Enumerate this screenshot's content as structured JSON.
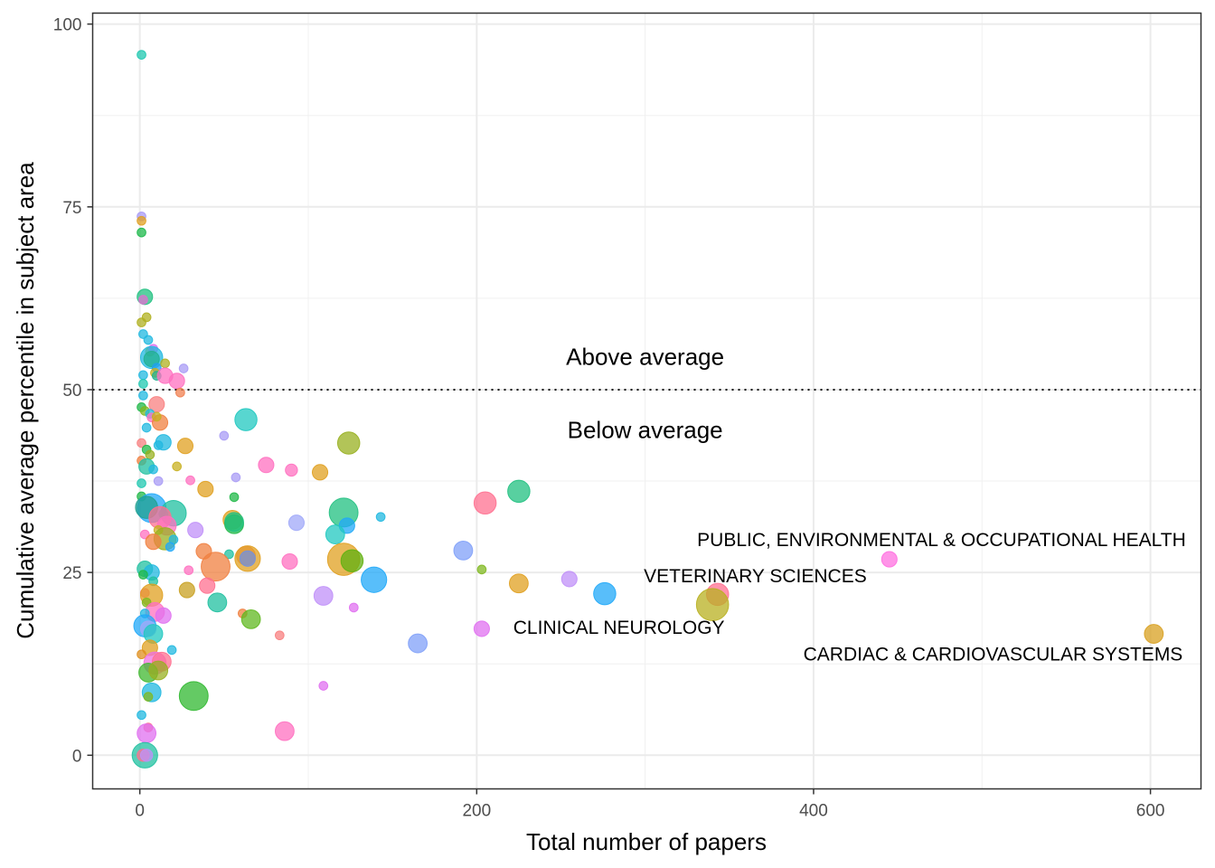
{
  "chart_data": {
    "type": "scatter",
    "title": "",
    "xlabel": "Total number of papers",
    "ylabel": "Cumulative average percentile in subject area",
    "xlim": [
      -28,
      630
    ],
    "ylim": [
      -4.6,
      101.5
    ],
    "xticks": [
      0,
      200,
      400,
      600
    ],
    "xtick_labels": [
      "0",
      "200",
      "400",
      "600"
    ],
    "yticks": [
      0,
      25,
      50,
      75,
      100
    ],
    "ytick_labels": [
      "0",
      "25",
      "50",
      "75",
      "100"
    ],
    "grid": true,
    "legend": "none",
    "reference_line": {
      "y": 50,
      "style": "dotted"
    },
    "annotations": [
      {
        "text": "Above average",
        "x": 300,
        "y": 54.5
      },
      {
        "text": "Below average",
        "x": 300,
        "y": 44.5
      }
    ],
    "point_labels": [
      {
        "text": "PUBLIC, ENVIRONMENTAL & OCCUPATIONAL HEALTH",
        "x": 445,
        "y": 29
      },
      {
        "text": "VETERINARY SCIENCES",
        "x": 343,
        "y": 24.5
      },
      {
        "text": "CLINICAL NEUROLOGY",
        "x": 204,
        "y": 17.5
      },
      {
        "text": "CARDIAC & CARDIOVASCULAR SYSTEMS",
        "x": 602,
        "y": 13.8
      }
    ],
    "points": [
      {
        "x": 1,
        "y": 95.8,
        "size": 1,
        "color": "#1fc8b0"
      },
      {
        "x": 1,
        "y": 73.7,
        "size": 1,
        "color": "#a89bf5"
      },
      {
        "x": 1,
        "y": 73.1,
        "size": 1,
        "color": "#e0a020"
      },
      {
        "x": 1,
        "y": 71.5,
        "size": 1,
        "color": "#1cb84a"
      },
      {
        "x": 3,
        "y": 62.7,
        "size": 3,
        "color": "#20c080"
      },
      {
        "x": 2,
        "y": 62.3,
        "size": 1,
        "color": "#e070d0"
      },
      {
        "x": 4,
        "y": 59.9,
        "size": 1,
        "color": "#b0b020"
      },
      {
        "x": 1,
        "y": 59.2,
        "size": 1,
        "color": "#b0b020"
      },
      {
        "x": 2,
        "y": 57.6,
        "size": 1,
        "color": "#20b8e0"
      },
      {
        "x": 5,
        "y": 56.8,
        "size": 1,
        "color": "#20b8e0"
      },
      {
        "x": 6,
        "y": 55.2,
        "size": 1,
        "color": "#c8b020"
      },
      {
        "x": 8,
        "y": 55.6,
        "size": 1,
        "color": "#e070f0"
      },
      {
        "x": 7,
        "y": 54.4,
        "size": 5,
        "color": "#20b8e0"
      },
      {
        "x": 7,
        "y": 54.2,
        "size": 3,
        "color": "#20b090"
      },
      {
        "x": 10,
        "y": 53,
        "size": 1,
        "color": "#20a0f0"
      },
      {
        "x": 15,
        "y": 53.6,
        "size": 1,
        "color": "#b0b020"
      },
      {
        "x": 26,
        "y": 52.9,
        "size": 1,
        "color": "#a89bf5"
      },
      {
        "x": 9,
        "y": 52.3,
        "size": 1,
        "color": "#c8b020"
      },
      {
        "x": 2,
        "y": 52,
        "size": 1,
        "color": "#20b8e0"
      },
      {
        "x": 10,
        "y": 51.9,
        "size": 1,
        "color": "#20b090"
      },
      {
        "x": 15,
        "y": 51.9,
        "size": 3,
        "color": "#ff70c0"
      },
      {
        "x": 22,
        "y": 51.2,
        "size": 3,
        "color": "#ff70c0"
      },
      {
        "x": 24,
        "y": 49.6,
        "size": 1,
        "color": "#f08050"
      },
      {
        "x": 2,
        "y": 50.8,
        "size": 1,
        "color": "#20c8b0"
      },
      {
        "x": 2,
        "y": 49.2,
        "size": 1,
        "color": "#20b8e0"
      },
      {
        "x": 10,
        "y": 48,
        "size": 3,
        "color": "#f88080"
      },
      {
        "x": 1,
        "y": 47.6,
        "size": 1,
        "color": "#20b848"
      },
      {
        "x": 3,
        "y": 47.1,
        "size": 1,
        "color": "#80b820"
      },
      {
        "x": 6,
        "y": 46.7,
        "size": 1,
        "color": "#20b8e0"
      },
      {
        "x": 7,
        "y": 46.2,
        "size": 1,
        "color": "#ff70c0"
      },
      {
        "x": 12,
        "y": 45.5,
        "size": 3,
        "color": "#f08040"
      },
      {
        "x": 10,
        "y": 46.3,
        "size": 1,
        "color": "#c8b020"
      },
      {
        "x": 4,
        "y": 44.8,
        "size": 1,
        "color": "#20b8e0"
      },
      {
        "x": 63,
        "y": 45.9,
        "size": 5,
        "color": "#20c8c0"
      },
      {
        "x": 50,
        "y": 43.7,
        "size": 1,
        "color": "#a89bf5"
      },
      {
        "x": 124,
        "y": 42.7,
        "size": 5,
        "color": "#98b020"
      },
      {
        "x": 1,
        "y": 42.7,
        "size": 1,
        "color": "#f88080"
      },
      {
        "x": 14,
        "y": 42.8,
        "size": 3,
        "color": "#20b8e0"
      },
      {
        "x": 11,
        "y": 42.4,
        "size": 1,
        "color": "#20b8e0"
      },
      {
        "x": 27,
        "y": 42.3,
        "size": 3,
        "color": "#e0a020"
      },
      {
        "x": 4,
        "y": 41.8,
        "size": 1,
        "color": "#20b848"
      },
      {
        "x": 6,
        "y": 41.1,
        "size": 1,
        "color": "#98b020"
      },
      {
        "x": 1,
        "y": 40.3,
        "size": 1,
        "color": "#f08040"
      },
      {
        "x": 4,
        "y": 39.5,
        "size": 3,
        "color": "#20c0a0"
      },
      {
        "x": 75,
        "y": 39.7,
        "size": 3,
        "color": "#ff70c0"
      },
      {
        "x": 90,
        "y": 39,
        "size": 2,
        "color": "#ff70c0"
      },
      {
        "x": 107,
        "y": 38.7,
        "size": 3,
        "color": "#e0a020"
      },
      {
        "x": 22,
        "y": 39.5,
        "size": 1,
        "color": "#c8b020"
      },
      {
        "x": 8,
        "y": 39.1,
        "size": 1,
        "color": "#20b8e0"
      },
      {
        "x": 57,
        "y": 38,
        "size": 1,
        "color": "#a89bf5"
      },
      {
        "x": 11,
        "y": 37.5,
        "size": 1,
        "color": "#a89bf5"
      },
      {
        "x": 30,
        "y": 37.6,
        "size": 1,
        "color": "#ff70c0"
      },
      {
        "x": 39,
        "y": 36.4,
        "size": 3,
        "color": "#e0a020"
      },
      {
        "x": 1,
        "y": 37.2,
        "size": 1,
        "color": "#20c8b0"
      },
      {
        "x": 225,
        "y": 36.1,
        "size": 5,
        "color": "#20c080"
      },
      {
        "x": 1,
        "y": 35.4,
        "size": 1,
        "color": "#20b848"
      },
      {
        "x": 56,
        "y": 35.3,
        "size": 1,
        "color": "#20b848"
      },
      {
        "x": 205,
        "y": 34.5,
        "size": 5,
        "color": "#ff7090"
      },
      {
        "x": 7,
        "y": 33.8,
        "size": 7,
        "color": "#20a8f8"
      },
      {
        "x": 4,
        "y": 33.9,
        "size": 5,
        "color": "#20a090"
      },
      {
        "x": 20,
        "y": 33.1,
        "size": 6,
        "color": "#20c0a0"
      },
      {
        "x": 121,
        "y": 33.2,
        "size": 7,
        "color": "#20c080"
      },
      {
        "x": 14,
        "y": 33,
        "size": 1,
        "color": "#20b8e0"
      },
      {
        "x": 12,
        "y": 32.5,
        "size": 5,
        "color": "#ff7090"
      },
      {
        "x": 55,
        "y": 32.2,
        "size": 4,
        "color": "#e0a020"
      },
      {
        "x": 56,
        "y": 31.6,
        "size": 4,
        "color": "#20b848"
      },
      {
        "x": 56,
        "y": 31.9,
        "size": 4,
        "color": "#20c080"
      },
      {
        "x": 143,
        "y": 32.6,
        "size": 1,
        "color": "#20b8e0"
      },
      {
        "x": 93,
        "y": 31.8,
        "size": 3,
        "color": "#a0a8f8"
      },
      {
        "x": 123,
        "y": 31.4,
        "size": 3,
        "color": "#20a8f8"
      },
      {
        "x": 16,
        "y": 31.4,
        "size": 4,
        "color": "#ff70c0"
      },
      {
        "x": 33,
        "y": 30.8,
        "size": 3,
        "color": "#c090f8"
      },
      {
        "x": 116,
        "y": 30.2,
        "size": 4,
        "color": "#20c8c0"
      },
      {
        "x": 3,
        "y": 30.2,
        "size": 1,
        "color": "#ff70c0"
      },
      {
        "x": 11,
        "y": 30.8,
        "size": 1,
        "color": "#c8b020"
      },
      {
        "x": 15,
        "y": 29.6,
        "size": 5,
        "color": "#98b020"
      },
      {
        "x": 8,
        "y": 29.2,
        "size": 3,
        "color": "#f08040"
      },
      {
        "x": 20,
        "y": 29.5,
        "size": 1,
        "color": "#20b8e0"
      },
      {
        "x": 18,
        "y": 28.5,
        "size": 1,
        "color": "#20a8f8"
      },
      {
        "x": 38,
        "y": 27.9,
        "size": 3,
        "color": "#f08040"
      },
      {
        "x": 53,
        "y": 27.5,
        "size": 1,
        "color": "#20c0a0"
      },
      {
        "x": 63,
        "y": 27.3,
        "size": 4,
        "color": "#f08060"
      },
      {
        "x": 64,
        "y": 26.9,
        "size": 6,
        "color": "#e0a020"
      },
      {
        "x": 64,
        "y": 26.9,
        "size": 3,
        "color": "#7090e0"
      },
      {
        "x": 89,
        "y": 26.5,
        "size": 3,
        "color": "#ff70c0"
      },
      {
        "x": 121,
        "y": 26.8,
        "size": 8,
        "color": "#e0a020"
      },
      {
        "x": 126,
        "y": 26.6,
        "size": 5,
        "color": "#60b010"
      },
      {
        "x": 192,
        "y": 28.0,
        "size": 4,
        "color": "#80a0f8"
      },
      {
        "x": 45,
        "y": 25.8,
        "size": 7,
        "color": "#f08040"
      },
      {
        "x": 3,
        "y": 25.5,
        "size": 3,
        "color": "#20c0a0"
      },
      {
        "x": 7,
        "y": 25,
        "size": 3,
        "color": "#20b8e0"
      },
      {
        "x": 2,
        "y": 24.7,
        "size": 1,
        "color": "#20b848"
      },
      {
        "x": 29,
        "y": 25.3,
        "size": 1,
        "color": "#ff70c0"
      },
      {
        "x": 203,
        "y": 25.4,
        "size": 1,
        "color": "#80b820"
      },
      {
        "x": 8,
        "y": 23.8,
        "size": 1,
        "color": "#20c0a0"
      },
      {
        "x": 40,
        "y": 23.2,
        "size": 3,
        "color": "#ff7090"
      },
      {
        "x": 139,
        "y": 24,
        "size": 6,
        "color": "#20a8f8"
      },
      {
        "x": 225,
        "y": 23.5,
        "size": 4,
        "color": "#e0a020"
      },
      {
        "x": 255,
        "y": 24.1,
        "size": 3,
        "color": "#c090f8"
      },
      {
        "x": 28,
        "y": 22.6,
        "size": 3,
        "color": "#c8a020"
      },
      {
        "x": 3,
        "y": 22.2,
        "size": 1,
        "color": "#ff7090"
      },
      {
        "x": 7,
        "y": 21.9,
        "size": 5,
        "color": "#e0a020"
      },
      {
        "x": 46,
        "y": 20.9,
        "size": 4,
        "color": "#20c0a0"
      },
      {
        "x": 109,
        "y": 21.8,
        "size": 4,
        "color": "#c090f8"
      },
      {
        "x": 276,
        "y": 22.1,
        "size": 5,
        "color": "#20a8f8"
      },
      {
        "x": 343,
        "y": 22,
        "size": 5,
        "color": "#ff7090"
      },
      {
        "x": 340,
        "y": 20.6,
        "size": 8,
        "color": "#b8b020"
      },
      {
        "x": 4,
        "y": 20.9,
        "size": 1,
        "color": "#80b820"
      },
      {
        "x": 9,
        "y": 19.6,
        "size": 4,
        "color": "#ff70c0"
      },
      {
        "x": 14,
        "y": 19.1,
        "size": 3,
        "color": "#e070f0"
      },
      {
        "x": 61,
        "y": 19.4,
        "size": 1,
        "color": "#f08040"
      },
      {
        "x": 66,
        "y": 18.6,
        "size": 4,
        "color": "#60b820"
      },
      {
        "x": 3,
        "y": 19.4,
        "size": 1,
        "color": "#20b8e0"
      },
      {
        "x": 127,
        "y": 20.2,
        "size": 1,
        "color": "#e070f0"
      },
      {
        "x": 203,
        "y": 17.3,
        "size": 3,
        "color": "#e070f0"
      },
      {
        "x": 3,
        "y": 17.7,
        "size": 5,
        "color": "#20a8f8"
      },
      {
        "x": 5,
        "y": 17.3,
        "size": 3,
        "color": "#a0a8f8"
      },
      {
        "x": 8,
        "y": 16.6,
        "size": 4,
        "color": "#20c8c0"
      },
      {
        "x": 83,
        "y": 16.4,
        "size": 1,
        "color": "#f88080"
      },
      {
        "x": 165,
        "y": 15.3,
        "size": 4,
        "color": "#80a0f8"
      },
      {
        "x": 6,
        "y": 14.7,
        "size": 3,
        "color": "#e0a020"
      },
      {
        "x": 19,
        "y": 14.4,
        "size": 1,
        "color": "#20b8e0"
      },
      {
        "x": 1,
        "y": 13.8,
        "size": 1,
        "color": "#e09020"
      },
      {
        "x": 9,
        "y": 12.6,
        "size": 5,
        "color": "#f070e0"
      },
      {
        "x": 13,
        "y": 12.8,
        "size": 4,
        "color": "#ff7090"
      },
      {
        "x": 5,
        "y": 11.3,
        "size": 4,
        "color": "#40b830"
      },
      {
        "x": 11,
        "y": 11.6,
        "size": 4,
        "color": "#98b020"
      },
      {
        "x": 32,
        "y": 8.1,
        "size": 7,
        "color": "#30b830"
      },
      {
        "x": 7,
        "y": 8.6,
        "size": 4,
        "color": "#20b8e0"
      },
      {
        "x": 5,
        "y": 8.0,
        "size": 1,
        "color": "#80b820"
      },
      {
        "x": 109,
        "y": 9.5,
        "size": 1,
        "color": "#e070f0"
      },
      {
        "x": 1,
        "y": 5.5,
        "size": 1,
        "color": "#20b8e0"
      },
      {
        "x": 5,
        "y": 3.8,
        "size": 1,
        "color": "#ff7090"
      },
      {
        "x": 4,
        "y": 3,
        "size": 4,
        "color": "#e070f0"
      },
      {
        "x": 86,
        "y": 3.3,
        "size": 4,
        "color": "#ff70c0"
      },
      {
        "x": 3,
        "y": 0,
        "size": 6,
        "color": "#20c0a0"
      },
      {
        "x": 2,
        "y": 0,
        "size": 2,
        "color": "#ff7090"
      },
      {
        "x": 4,
        "y": 0,
        "size": 2,
        "color": "#c090f8"
      },
      {
        "x": 445,
        "y": 26.8,
        "size": 3,
        "color": "#ff70e0"
      },
      {
        "x": 602,
        "y": 16.6,
        "size": 4,
        "color": "#d8a020"
      }
    ]
  }
}
